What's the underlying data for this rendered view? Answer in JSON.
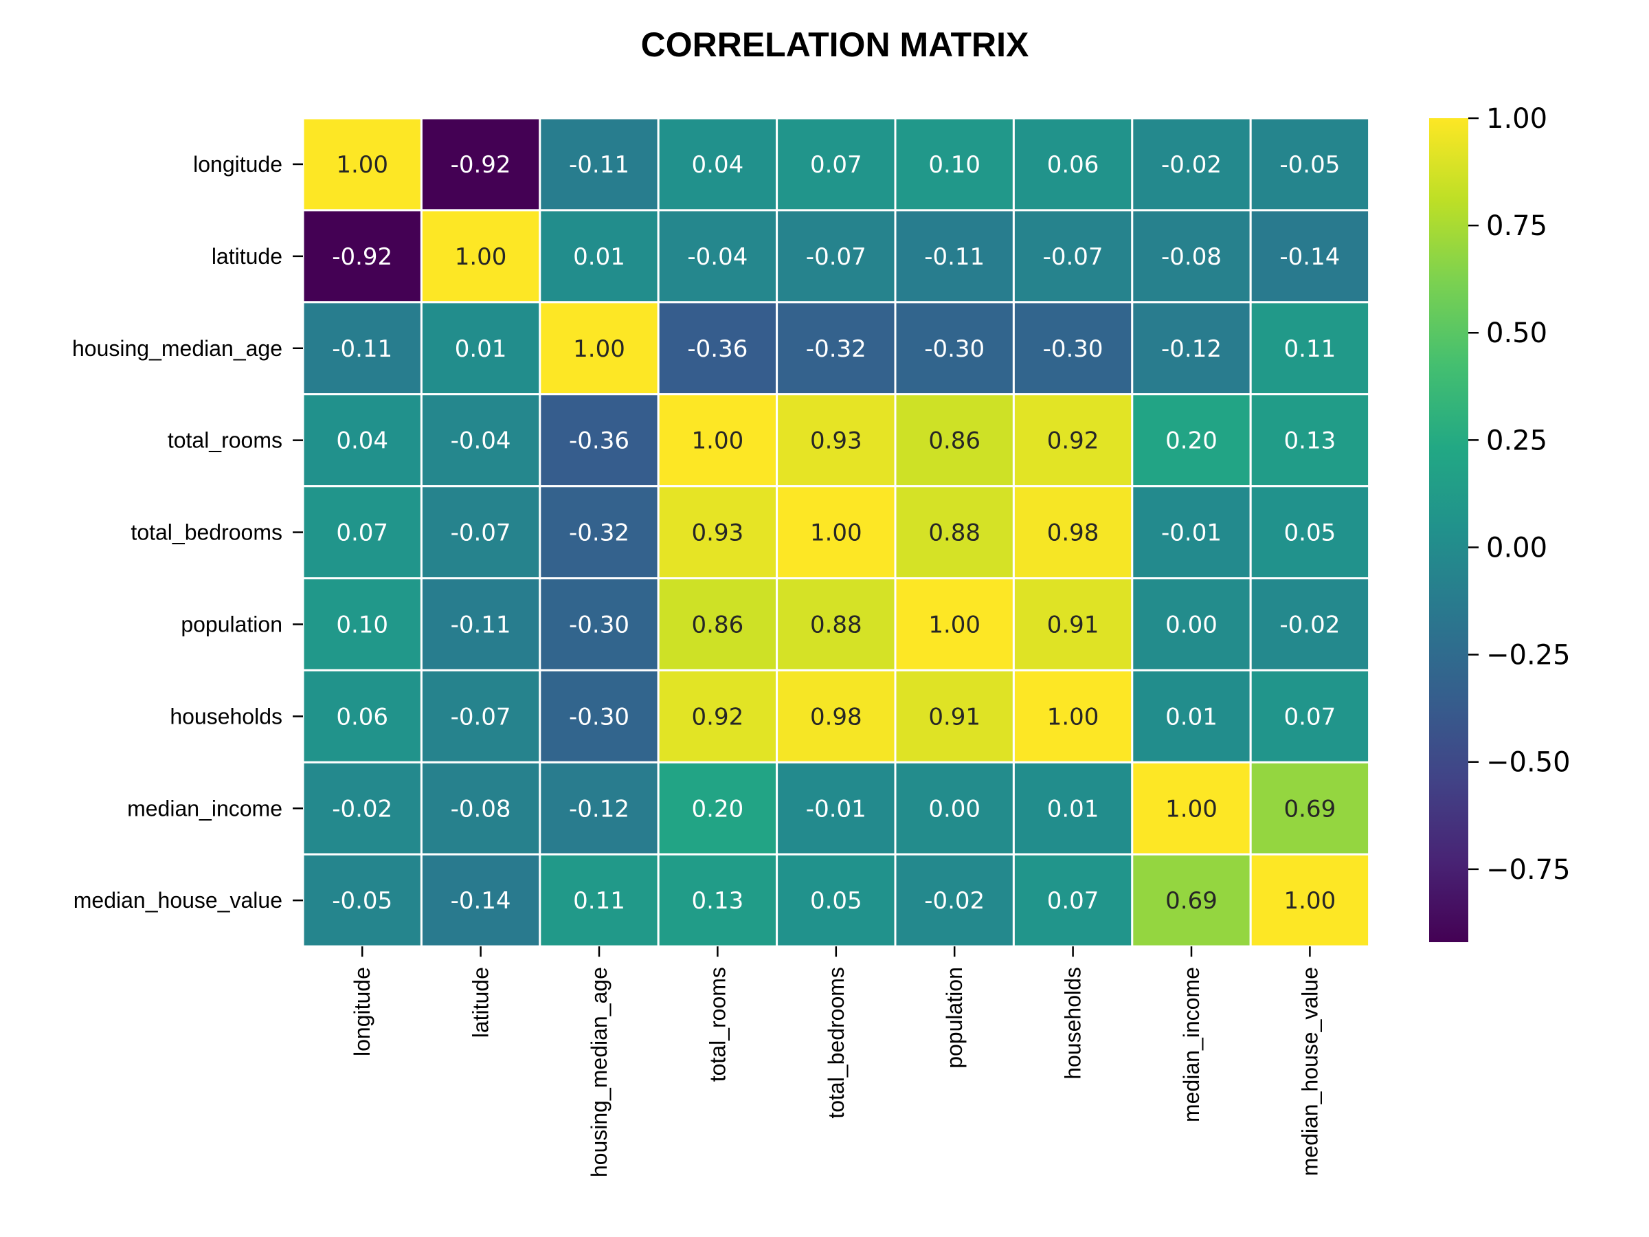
{
  "chart_data": {
    "type": "heatmap",
    "title": "CORRELATION MATRIX",
    "labels": [
      "longitude",
      "latitude",
      "housing_median_age",
      "total_rooms",
      "total_bedrooms",
      "population",
      "households",
      "median_income",
      "median_house_value"
    ],
    "matrix": [
      [
        1.0,
        -0.92,
        -0.11,
        0.04,
        0.07,
        0.1,
        0.06,
        -0.02,
        -0.05
      ],
      [
        -0.92,
        1.0,
        0.01,
        -0.04,
        -0.07,
        -0.11,
        -0.07,
        -0.08,
        -0.14
      ],
      [
        -0.11,
        0.01,
        1.0,
        -0.36,
        -0.32,
        -0.3,
        -0.3,
        -0.12,
        0.11
      ],
      [
        0.04,
        -0.04,
        -0.36,
        1.0,
        0.93,
        0.86,
        0.92,
        0.2,
        0.13
      ],
      [
        0.07,
        -0.07,
        -0.32,
        0.93,
        1.0,
        0.88,
        0.98,
        -0.01,
        0.05
      ],
      [
        0.1,
        -0.11,
        -0.3,
        0.86,
        0.88,
        1.0,
        0.91,
        0.0,
        -0.02
      ],
      [
        0.06,
        -0.07,
        -0.3,
        0.92,
        0.98,
        0.91,
        1.0,
        0.01,
        0.07
      ],
      [
        -0.02,
        -0.08,
        -0.12,
        0.2,
        -0.01,
        0.0,
        0.01,
        1.0,
        0.69
      ],
      [
        -0.05,
        -0.14,
        0.11,
        0.13,
        0.05,
        -0.02,
        0.07,
        0.69,
        1.0
      ]
    ],
    "colormap": "viridis",
    "vmin": -0.92,
    "vmax": 1.0,
    "colorbar_ticks": [
      1.0,
      0.75,
      0.5,
      0.25,
      0.0,
      -0.25,
      -0.5,
      -0.75
    ],
    "colorbar_tick_labels": [
      "1.00",
      "0.75",
      "0.50",
      "0.25",
      "0.00",
      "−0.25",
      "−0.50",
      "−0.75"
    ],
    "grid_line_color": "#ffffff",
    "annotation_dark_text_color": "#262626",
    "annotation_light_text_color": "#ffffff"
  }
}
